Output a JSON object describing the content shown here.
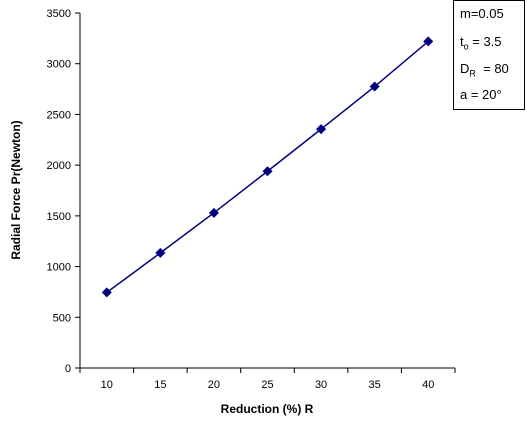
{
  "chart_data": {
    "type": "line",
    "title": "",
    "xlabel": "Reduction (%) R",
    "ylabel": "Radial Force Pr(Newton)",
    "x": [
      10,
      15,
      20,
      25,
      30,
      35,
      40
    ],
    "series": [
      {
        "values": [
          745,
          1135,
          1530,
          1940,
          2355,
          2775,
          3220
        ],
        "color": "#000080",
        "marker": "diamond"
      }
    ],
    "xticks": [
      "10",
      "15",
      "20",
      "25",
      "30",
      "35",
      "40"
    ],
    "yticks": [
      "0",
      "500",
      "1000",
      "1500",
      "2000",
      "2500",
      "3000",
      "3500"
    ],
    "ylim": [
      0,
      3500
    ],
    "grid": false,
    "legend_position": "top-right"
  },
  "parameters": {
    "m": {
      "text": "m=0.05"
    },
    "to": {
      "main": "t",
      "sub": "o",
      "rest": " = 3.5"
    },
    "dr": {
      "main": "D",
      "sub": "R",
      "rest": "  = 80"
    },
    "a": {
      "text": "a = 20°"
    }
  }
}
